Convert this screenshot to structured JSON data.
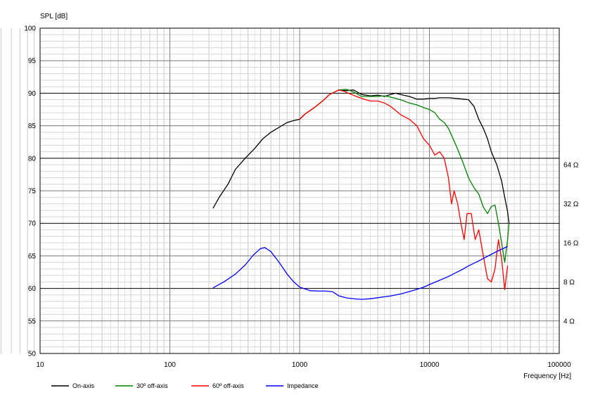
{
  "chart_data": {
    "type": "line",
    "ylabel": "SPL [dB]",
    "xlabel": "Frequency [Hz]",
    "xscale": "log",
    "xlim": [
      10,
      100000
    ],
    "ylim": [
      50,
      100
    ],
    "x_ticks": [
      {
        "value": 10,
        "label": "10"
      },
      {
        "value": 100,
        "label": "100"
      },
      {
        "value": 1000,
        "label": "1000"
      },
      {
        "value": 10000,
        "label": "10000"
      },
      {
        "value": 100000,
        "label": "100000"
      }
    ],
    "y_ticks": [
      {
        "value": 50,
        "label": "50"
      },
      {
        "value": 55,
        "label": "55"
      },
      {
        "value": 60,
        "label": "60"
      },
      {
        "value": 65,
        "label": "65"
      },
      {
        "value": 70,
        "label": "70"
      },
      {
        "value": 75,
        "label": "75"
      },
      {
        "value": 80,
        "label": "80"
      },
      {
        "value": 85,
        "label": "85"
      },
      {
        "value": 90,
        "label": "90"
      },
      {
        "value": 95,
        "label": "95"
      },
      {
        "value": 100,
        "label": "100"
      }
    ],
    "y2_ticks": [
      {
        "value": 4,
        "label": "4 Ω"
      },
      {
        "value": 8,
        "label": "8 Ω"
      },
      {
        "value": 16,
        "label": "16 Ω"
      },
      {
        "value": 32,
        "label": "32 Ω"
      },
      {
        "value": 64,
        "label": "64 Ω"
      }
    ],
    "y2scale": "log",
    "y2_mapping": {
      "ohm_a": 4,
      "db_a": 55,
      "ohm_b": 64,
      "db_b": 79
    },
    "grid": true,
    "legend_position": "bottom-left",
    "series": [
      {
        "name": "On-axis",
        "color": "#000000",
        "axis": "y",
        "points": [
          [
            215,
            72.3
          ],
          [
            240,
            74
          ],
          [
            280,
            76
          ],
          [
            320,
            78.3
          ],
          [
            380,
            80
          ],
          [
            450,
            81.5
          ],
          [
            520,
            83
          ],
          [
            600,
            84
          ],
          [
            700,
            84.8
          ],
          [
            800,
            85.5
          ],
          [
            900,
            85.8
          ],
          [
            1000,
            86
          ],
          [
            1100,
            86.8
          ],
          [
            1300,
            87.8
          ],
          [
            1500,
            88.8
          ],
          [
            1700,
            89.8
          ],
          [
            2000,
            90.5
          ],
          [
            2300,
            90.4
          ],
          [
            2600,
            90.5
          ],
          [
            3000,
            89.8
          ],
          [
            3500,
            89.6
          ],
          [
            4000,
            89.7
          ],
          [
            4500,
            89.5
          ],
          [
            5000,
            89.8
          ],
          [
            5500,
            90
          ],
          [
            6000,
            89.8
          ],
          [
            7000,
            89.5
          ],
          [
            8000,
            89.1
          ],
          [
            9000,
            89.1
          ],
          [
            10000,
            89.2
          ],
          [
            11000,
            89.2
          ],
          [
            12000,
            89.3
          ],
          [
            14000,
            89.3
          ],
          [
            16000,
            89.2
          ],
          [
            18000,
            89.1
          ],
          [
            20000,
            89
          ],
          [
            22000,
            88
          ],
          [
            24000,
            86
          ],
          [
            26000,
            84.6
          ],
          [
            28000,
            83
          ],
          [
            30000,
            81
          ],
          [
            33000,
            79
          ],
          [
            36000,
            76.5
          ],
          [
            38000,
            74
          ],
          [
            40000,
            71.8
          ],
          [
            41000,
            70
          ]
        ]
      },
      {
        "name": "30º off-axis",
        "color": "#008000",
        "axis": "y",
        "points": [
          [
            1000,
            86
          ],
          [
            1100,
            86.8
          ],
          [
            1300,
            87.8
          ],
          [
            1500,
            88.8
          ],
          [
            1700,
            89.8
          ],
          [
            2000,
            90.5
          ],
          [
            2300,
            90.6
          ],
          [
            2600,
            90.2
          ],
          [
            3000,
            89.5
          ],
          [
            3500,
            89.5
          ],
          [
            4000,
            89.5
          ],
          [
            4500,
            89.6
          ],
          [
            5000,
            89.4
          ],
          [
            5500,
            89.2
          ],
          [
            6000,
            89
          ],
          [
            7000,
            88.5
          ],
          [
            8000,
            88.2
          ],
          [
            9000,
            87.8
          ],
          [
            10000,
            87.5
          ],
          [
            11000,
            87
          ],
          [
            12000,
            86
          ],
          [
            13000,
            85.5
          ],
          [
            14000,
            84.6
          ],
          [
            16000,
            82
          ],
          [
            18000,
            79.5
          ],
          [
            20000,
            77
          ],
          [
            22000,
            75.5
          ],
          [
            24000,
            74.5
          ],
          [
            26000,
            72.5
          ],
          [
            28000,
            71.5
          ],
          [
            30000,
            72.6
          ],
          [
            32000,
            72.8
          ],
          [
            34000,
            70
          ],
          [
            36000,
            67
          ],
          [
            38000,
            64
          ],
          [
            40000,
            67.5
          ],
          [
            41000,
            70
          ]
        ]
      },
      {
        "name": "60º off-axis",
        "color": "#ff0000",
        "axis": "y",
        "points": [
          [
            1000,
            86
          ],
          [
            1100,
            86.8
          ],
          [
            1300,
            87.8
          ],
          [
            1500,
            88.8
          ],
          [
            1700,
            89.8
          ],
          [
            2000,
            90.5
          ],
          [
            2200,
            90.3
          ],
          [
            2500,
            89.8
          ],
          [
            3000,
            89.2
          ],
          [
            3500,
            88.8
          ],
          [
            4000,
            88.8
          ],
          [
            4500,
            88.5
          ],
          [
            5000,
            88
          ],
          [
            6000,
            86.7
          ],
          [
            7000,
            86
          ],
          [
            8000,
            85
          ],
          [
            9000,
            83
          ],
          [
            10000,
            82
          ],
          [
            11000,
            80.5
          ],
          [
            12000,
            81
          ],
          [
            13000,
            80
          ],
          [
            14000,
            77
          ],
          [
            14800,
            73
          ],
          [
            15500,
            75
          ],
          [
            16500,
            73
          ],
          [
            17500,
            70
          ],
          [
            18500,
            67.5
          ],
          [
            19500,
            71.5
          ],
          [
            21000,
            71.5
          ],
          [
            22500,
            67.5
          ],
          [
            24000,
            69
          ],
          [
            26000,
            65
          ],
          [
            28000,
            61.5
          ],
          [
            30000,
            61
          ],
          [
            32000,
            63
          ],
          [
            34000,
            67.5
          ],
          [
            36000,
            64.5
          ],
          [
            38000,
            59.8
          ],
          [
            40000,
            63.5
          ]
        ]
      },
      {
        "name": "Impedance",
        "color": "#0000ff",
        "axis": "y2",
        "points": [
          [
            215,
            7.2
          ],
          [
            260,
            8.0
          ],
          [
            320,
            9.2
          ],
          [
            380,
            10.8
          ],
          [
            440,
            12.9
          ],
          [
            500,
            14.5
          ],
          [
            540,
            14.7
          ],
          [
            600,
            13.7
          ],
          [
            700,
            11.2
          ],
          [
            800,
            9.2
          ],
          [
            900,
            8.0
          ],
          [
            1000,
            7.3
          ],
          [
            1200,
            6.85
          ],
          [
            1400,
            6.8
          ],
          [
            1600,
            6.8
          ],
          [
            1800,
            6.7
          ],
          [
            2000,
            6.25
          ],
          [
            2300,
            6.02
          ],
          [
            2700,
            5.91
          ],
          [
            3000,
            5.87
          ],
          [
            3500,
            5.93
          ],
          [
            4000,
            6.04
          ],
          [
            5000,
            6.23
          ],
          [
            6000,
            6.46
          ],
          [
            7000,
            6.74
          ],
          [
            8000,
            7.0
          ],
          [
            9000,
            7.28
          ],
          [
            10000,
            7.63
          ],
          [
            12000,
            8.24
          ],
          [
            14000,
            8.8
          ],
          [
            16000,
            9.43
          ],
          [
            18000,
            10.0
          ],
          [
            20000,
            10.62
          ],
          [
            24000,
            11.6
          ],
          [
            28000,
            12.6
          ],
          [
            32000,
            13.5
          ],
          [
            36000,
            14.3
          ],
          [
            40000,
            15.0
          ]
        ]
      }
    ]
  }
}
